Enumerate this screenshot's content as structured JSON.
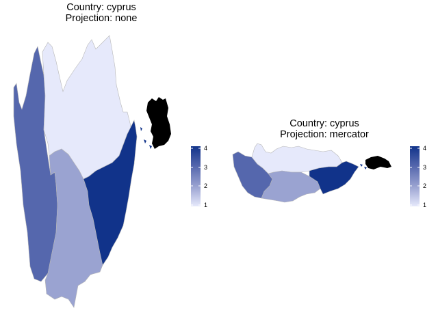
{
  "maps": [
    {
      "title_line1": "Country: cyprus",
      "title_line2": "Projection: none",
      "legend_ticks": [
        "4",
        "3",
        "2",
        "1"
      ]
    },
    {
      "title_line1": "Country: cyprus",
      "title_line2": "Projection: mercator",
      "legend_ticks": [
        "4",
        "3",
        "2",
        "1"
      ]
    }
  ],
  "colors": {
    "level_1": "#e6e9fb",
    "level_2": "#9aa3d1",
    "level_3": "#5567ad",
    "level_4": "#11338a",
    "no_data": "#000000",
    "border": "#b7b7b7"
  },
  "legend_scale": {
    "min": 1,
    "max": 4
  }
}
